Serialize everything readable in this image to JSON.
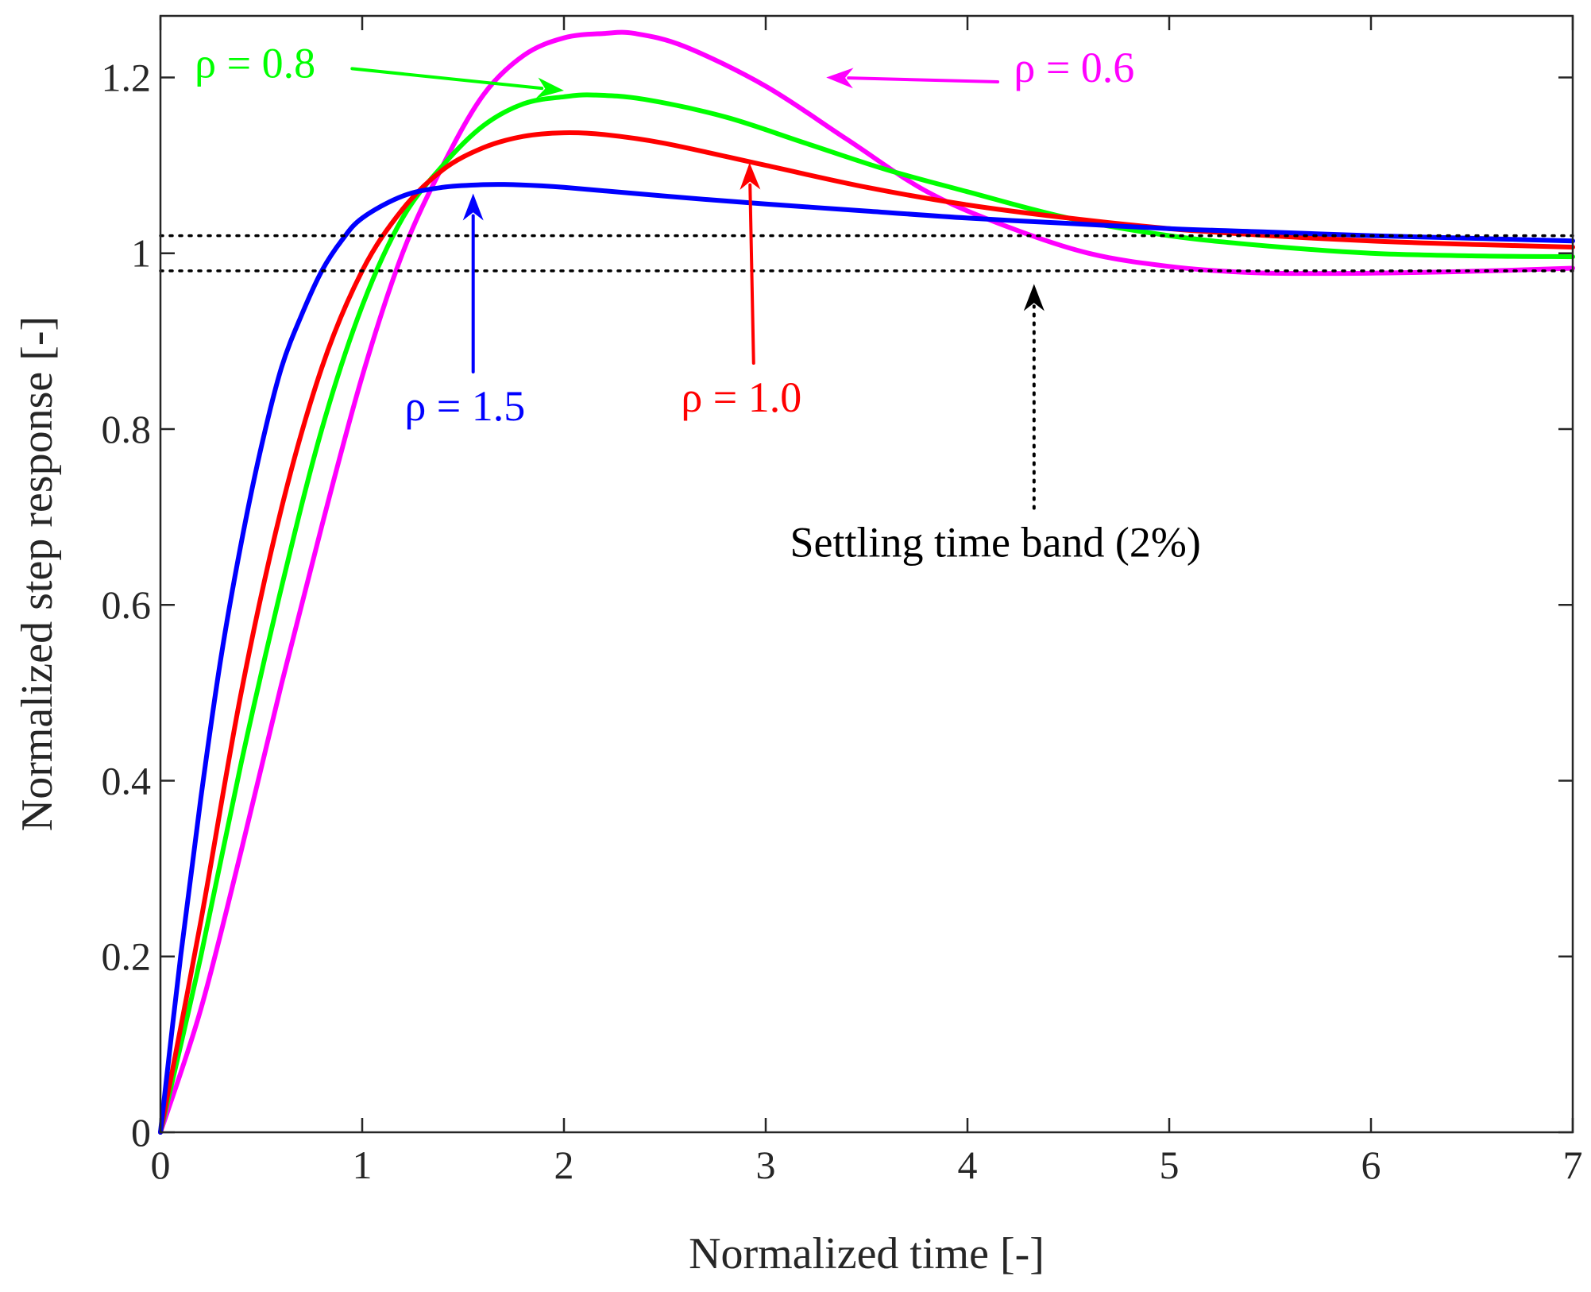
{
  "chart_data": {
    "type": "line",
    "title": "",
    "xlabel": "Normalized time [-]",
    "ylabel": "Normalized step response [-]",
    "xlim": [
      0,
      7
    ],
    "ylim": [
      0,
      1.27
    ],
    "xticks": [
      0,
      1,
      2,
      3,
      4,
      5,
      6,
      7
    ],
    "yticks": [
      0,
      0.2,
      0.4,
      0.6,
      0.8,
      1,
      1.2
    ],
    "xtick_labels": [
      "0",
      "1",
      "2",
      "3",
      "4",
      "5",
      "6",
      "7"
    ],
    "ytick_labels": [
      "0",
      "0.2",
      "0.4",
      "0.6",
      "0.8",
      "1",
      "1.2"
    ],
    "grid": false,
    "box": true,
    "series": [
      {
        "name": "ρ = 0.6",
        "color": "#ff00ff",
        "x": [
          0,
          0.2,
          0.4,
          0.6,
          0.8,
          1.0,
          1.2,
          1.4,
          1.6,
          1.8,
          2.0,
          2.2,
          2.35,
          2.6,
          3.0,
          3.4,
          3.8,
          4.2,
          4.6,
          5.0,
          5.4,
          5.8,
          6.2,
          6.6,
          7.0
        ],
        "y": [
          0,
          0.14,
          0.32,
          0.51,
          0.69,
          0.86,
          1.0,
          1.1,
          1.18,
          1.225,
          1.245,
          1.25,
          1.25,
          1.235,
          1.19,
          1.13,
          1.07,
          1.03,
          1.0,
          0.985,
          0.978,
          0.977,
          0.978,
          0.98,
          0.983
        ]
      },
      {
        "name": "ρ = 0.8",
        "color": "#00ff00",
        "x": [
          0,
          0.2,
          0.4,
          0.6,
          0.8,
          1.0,
          1.2,
          1.4,
          1.6,
          1.8,
          2.0,
          2.15,
          2.4,
          2.8,
          3.2,
          3.6,
          4.0,
          4.5,
          5.0,
          5.5,
          6.0,
          6.5,
          7.0
        ],
        "y": [
          0,
          0.2,
          0.42,
          0.62,
          0.8,
          0.94,
          1.04,
          1.1,
          1.145,
          1.17,
          1.178,
          1.18,
          1.175,
          1.155,
          1.125,
          1.095,
          1.07,
          1.04,
          1.02,
          1.008,
          1.0,
          0.997,
          0.996
        ]
      },
      {
        "name": "ρ = 1.0",
        "color": "#ff0000",
        "x": [
          0,
          0.2,
          0.4,
          0.6,
          0.8,
          1.0,
          1.2,
          1.4,
          1.6,
          1.8,
          2.0,
          2.2,
          2.5,
          3.0,
          3.5,
          4.0,
          4.5,
          5.0,
          5.5,
          6.0,
          6.5,
          7.0
        ],
        "y": [
          0,
          0.24,
          0.5,
          0.71,
          0.87,
          0.98,
          1.05,
          1.095,
          1.12,
          1.133,
          1.137,
          1.135,
          1.125,
          1.1,
          1.075,
          1.055,
          1.04,
          1.028,
          1.02,
          1.014,
          1.01,
          1.007
        ]
      },
      {
        "name": "ρ = 1.5",
        "color": "#0000ff",
        "x": [
          0,
          0.1,
          0.2,
          0.3,
          0.4,
          0.5,
          0.6,
          0.7,
          0.8,
          0.9,
          1.0,
          1.2,
          1.4,
          1.6,
          1.75,
          2.0,
          2.5,
          3.0,
          3.5,
          4.0,
          4.5,
          5.0,
          5.5,
          6.0,
          6.5,
          7.0
        ],
        "y": [
          0,
          0.2,
          0.38,
          0.54,
          0.67,
          0.78,
          0.87,
          0.93,
          0.98,
          1.015,
          1.04,
          1.065,
          1.075,
          1.078,
          1.078,
          1.075,
          1.065,
          1.056,
          1.048,
          1.04,
          1.034,
          1.028,
          1.024,
          1.02,
          1.017,
          1.014
        ]
      }
    ],
    "reference_lines": [
      {
        "name": "upper band",
        "y": 1.02,
        "style": "dotted",
        "color": "#000000"
      },
      {
        "name": "lower band",
        "y": 0.98,
        "style": "dotted",
        "color": "#000000"
      }
    ],
    "annotations": [
      {
        "name": "rho-0.8",
        "text": "ρ = 0.8",
        "color": "#00ff00",
        "text_at": [
          0.17,
          1.2
        ],
        "arrow_from": [
          0.95,
          1.21
        ],
        "arrow_to": [
          2.0,
          1.185
        ]
      },
      {
        "name": "rho-0.6",
        "text": "ρ = 0.6",
        "color": "#ff00ff",
        "text_at": [
          4.23,
          1.195
        ],
        "arrow_from": [
          4.15,
          1.195
        ],
        "arrow_to": [
          3.3,
          1.2
        ]
      },
      {
        "name": "rho-1.5",
        "text": "ρ = 1.5",
        "color": "#0000ff",
        "text_at": [
          1.21,
          0.81
        ],
        "arrow_from": [
          1.55,
          0.865
        ],
        "arrow_to": [
          1.55,
          1.068
        ]
      },
      {
        "name": "rho-1.0",
        "text": "ρ = 1.0",
        "color": "#ff0000",
        "text_at": [
          2.58,
          0.82
        ],
        "arrow_from": [
          2.94,
          0.875
        ],
        "arrow_to": [
          2.92,
          1.103
        ]
      },
      {
        "name": "settling-band",
        "text": "Settling time band (2%)",
        "color": "#000000",
        "text_at": [
          3.12,
          0.655
        ],
        "arrow_from": [
          4.33,
          0.71
        ],
        "arrow_to": [
          4.33,
          0.965
        ],
        "dotted": true
      }
    ]
  }
}
